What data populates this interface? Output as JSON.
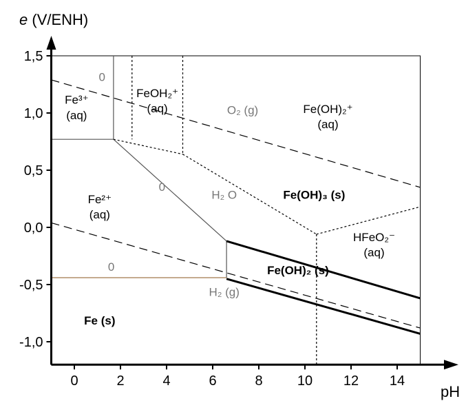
{
  "chart_data": {
    "type": "line",
    "title": "",
    "ylabel": "e (V/ENH)",
    "ylabel_italic_part": "e",
    "ylabel_rest": " (V/ENH)",
    "xlabel": "pH",
    "xlim": [
      -1,
      15.8
    ],
    "ylim": [
      -1.2,
      1.55
    ],
    "xticks": [
      {
        "value": 0,
        "label": "0"
      },
      {
        "value": 2,
        "label": "2"
      },
      {
        "value": 4,
        "label": "4"
      },
      {
        "value": 6,
        "label": "6"
      },
      {
        "value": 8,
        "label": "8"
      },
      {
        "value": 10,
        "label": "10"
      },
      {
        "value": 12,
        "label": "12"
      },
      {
        "value": 14,
        "label": "14"
      }
    ],
    "yticks": [
      {
        "value": 1.5,
        "label": "1,5"
      },
      {
        "value": 1.0,
        "label": "1,0"
      },
      {
        "value": 0.5,
        "label": "0,5"
      },
      {
        "value": 0.0,
        "label": "0,0"
      },
      {
        "value": -0.5,
        "label": "-0,5"
      },
      {
        "value": -1.0,
        "label": "-1,0"
      }
    ],
    "frame": {
      "x": [
        -1,
        15
      ],
      "y": [
        -1.2,
        1.5
      ]
    },
    "lines": [
      {
        "id": "fe3-fe2-boundary",
        "style": "thin-solid",
        "color": "#555555",
        "points": [
          [
            -1,
            0.77
          ],
          [
            1.7,
            0.77
          ]
        ]
      },
      {
        "id": "fe3-vertical",
        "style": "thin-solid",
        "color": "#555555",
        "points": [
          [
            1.7,
            0.77
          ],
          [
            1.7,
            1.5
          ]
        ]
      },
      {
        "id": "fe2-feoh3-slope",
        "style": "thin-solid",
        "color": "#555555",
        "points": [
          [
            1.7,
            0.77
          ],
          [
            6.6,
            -0.12
          ]
        ]
      },
      {
        "id": "fe2-feoh2-vertical",
        "style": "thin-solid",
        "color": "#555555",
        "points": [
          [
            6.6,
            -0.12
          ],
          [
            6.6,
            -0.44
          ]
        ]
      },
      {
        "id": "fe-fe2-boundary",
        "style": "thin-solid",
        "color": "#a0784a",
        "points": [
          [
            -1,
            -0.44
          ],
          [
            6.6,
            -0.44
          ]
        ]
      },
      {
        "id": "feoh3-feoh2-boundary",
        "style": "thick-solid",
        "color": "#000000",
        "points": [
          [
            6.6,
            -0.12
          ],
          [
            15,
            -0.62
          ]
        ]
      },
      {
        "id": "feoh2-fe-boundary",
        "style": "thick-solid",
        "color": "#000000",
        "points": [
          [
            6.6,
            -0.45
          ],
          [
            15,
            -0.93
          ]
        ]
      },
      {
        "id": "o2-water-line",
        "style": "dashed",
        "color": "#000000",
        "points": [
          [
            -1,
            1.29
          ],
          [
            15,
            0.35
          ]
        ]
      },
      {
        "id": "h2-water-line",
        "style": "dashed",
        "color": "#000000",
        "points": [
          [
            -1,
            0.04
          ],
          [
            15,
            -0.88
          ]
        ]
      },
      {
        "id": "fe3-feoh2plus-dotted",
        "style": "dotted",
        "color": "#000000",
        "points": [
          [
            2.5,
            1.5
          ],
          [
            2.5,
            0.77
          ]
        ]
      },
      {
        "id": "feoh2plus-lower-dotted",
        "style": "dotted",
        "color": "#000000",
        "points": [
          [
            1.7,
            0.77
          ],
          [
            4.7,
            0.64
          ]
        ]
      },
      {
        "id": "feoh2plus-right-dotted",
        "style": "dotted",
        "color": "#000000",
        "points": [
          [
            4.7,
            1.5
          ],
          [
            4.7,
            0.64
          ]
        ]
      },
      {
        "id": "feoh3-upper-dotted",
        "style": "dotted",
        "color": "#000000",
        "points": [
          [
            4.7,
            0.64
          ],
          [
            10.5,
            -0.06
          ]
        ]
      },
      {
        "id": "hfeo2-upper-dotted",
        "style": "dotted",
        "color": "#000000",
        "points": [
          [
            10.5,
            -0.06
          ],
          [
            15,
            0.18
          ]
        ]
      },
      {
        "id": "hfeo2-vertical-dotted",
        "style": "dotted",
        "color": "#000000",
        "points": [
          [
            10.5,
            -0.06
          ],
          [
            10.5,
            -1.2
          ]
        ]
      }
    ],
    "annotations": [
      {
        "id": "fe3-label",
        "lines": [
          "Fe³⁺",
          "(aq)"
        ],
        "x": 0.1,
        "y": 1.08,
        "size": 17
      },
      {
        "id": "feoh2plus-small-label",
        "lines": [
          "FeOH₂⁺",
          "(aq)"
        ],
        "x": 3.6,
        "y": 1.14,
        "size": 17
      },
      {
        "id": "feoh2plus-label",
        "lines": [
          "Fe(OH)₂⁺",
          "(aq)"
        ],
        "x": 11.0,
        "y": 1.0,
        "size": 17
      },
      {
        "id": "o2-label",
        "lines": [
          "O₂ (g)"
        ],
        "x": 7.3,
        "y": 0.99,
        "size": 13,
        "grey": true
      },
      {
        "id": "fe2-label",
        "lines": [
          "Fe²⁺",
          "(aq)"
        ],
        "x": 1.1,
        "y": 0.21,
        "size": 17
      },
      {
        "id": "h2o-label",
        "lines": [
          "H₂ O"
        ],
        "x": 6.5,
        "y": 0.25,
        "size": 13,
        "grey": true
      },
      {
        "id": "feoh3-label",
        "lines": [
          "Fe(OH)₃ (s)"
        ],
        "x": 10.4,
        "y": 0.25,
        "size": 18,
        "bold": true
      },
      {
        "id": "hfeo2-label",
        "lines": [
          "HFeO₂⁻",
          "(aq)"
        ],
        "x": 13.0,
        "y": -0.12,
        "size": 17
      },
      {
        "id": "feoh2-label",
        "lines": [
          "Fe(OH)₂ (s)"
        ],
        "x": 9.7,
        "y": -0.41,
        "size": 18,
        "bold": true
      },
      {
        "id": "h2-label",
        "lines": [
          "H₂ (g)"
        ],
        "x": 6.5,
        "y": -0.6,
        "size": 13,
        "grey": true
      },
      {
        "id": "fe-label",
        "lines": [
          "Fe (s)"
        ],
        "x": 1.1,
        "y": -0.85,
        "size": 20,
        "bold": true
      },
      {
        "id": "zero-a",
        "lines": [
          "0"
        ],
        "x": 1.2,
        "y": 1.28,
        "size": 13,
        "grey": true
      },
      {
        "id": "zero-b",
        "lines": [
          "0"
        ],
        "x": 3.8,
        "y": 0.32,
        "size": 13,
        "grey": true
      },
      {
        "id": "zero-c",
        "lines": [
          "0"
        ],
        "x": 1.6,
        "y": -0.38,
        "size": 13,
        "grey": true
      }
    ]
  }
}
